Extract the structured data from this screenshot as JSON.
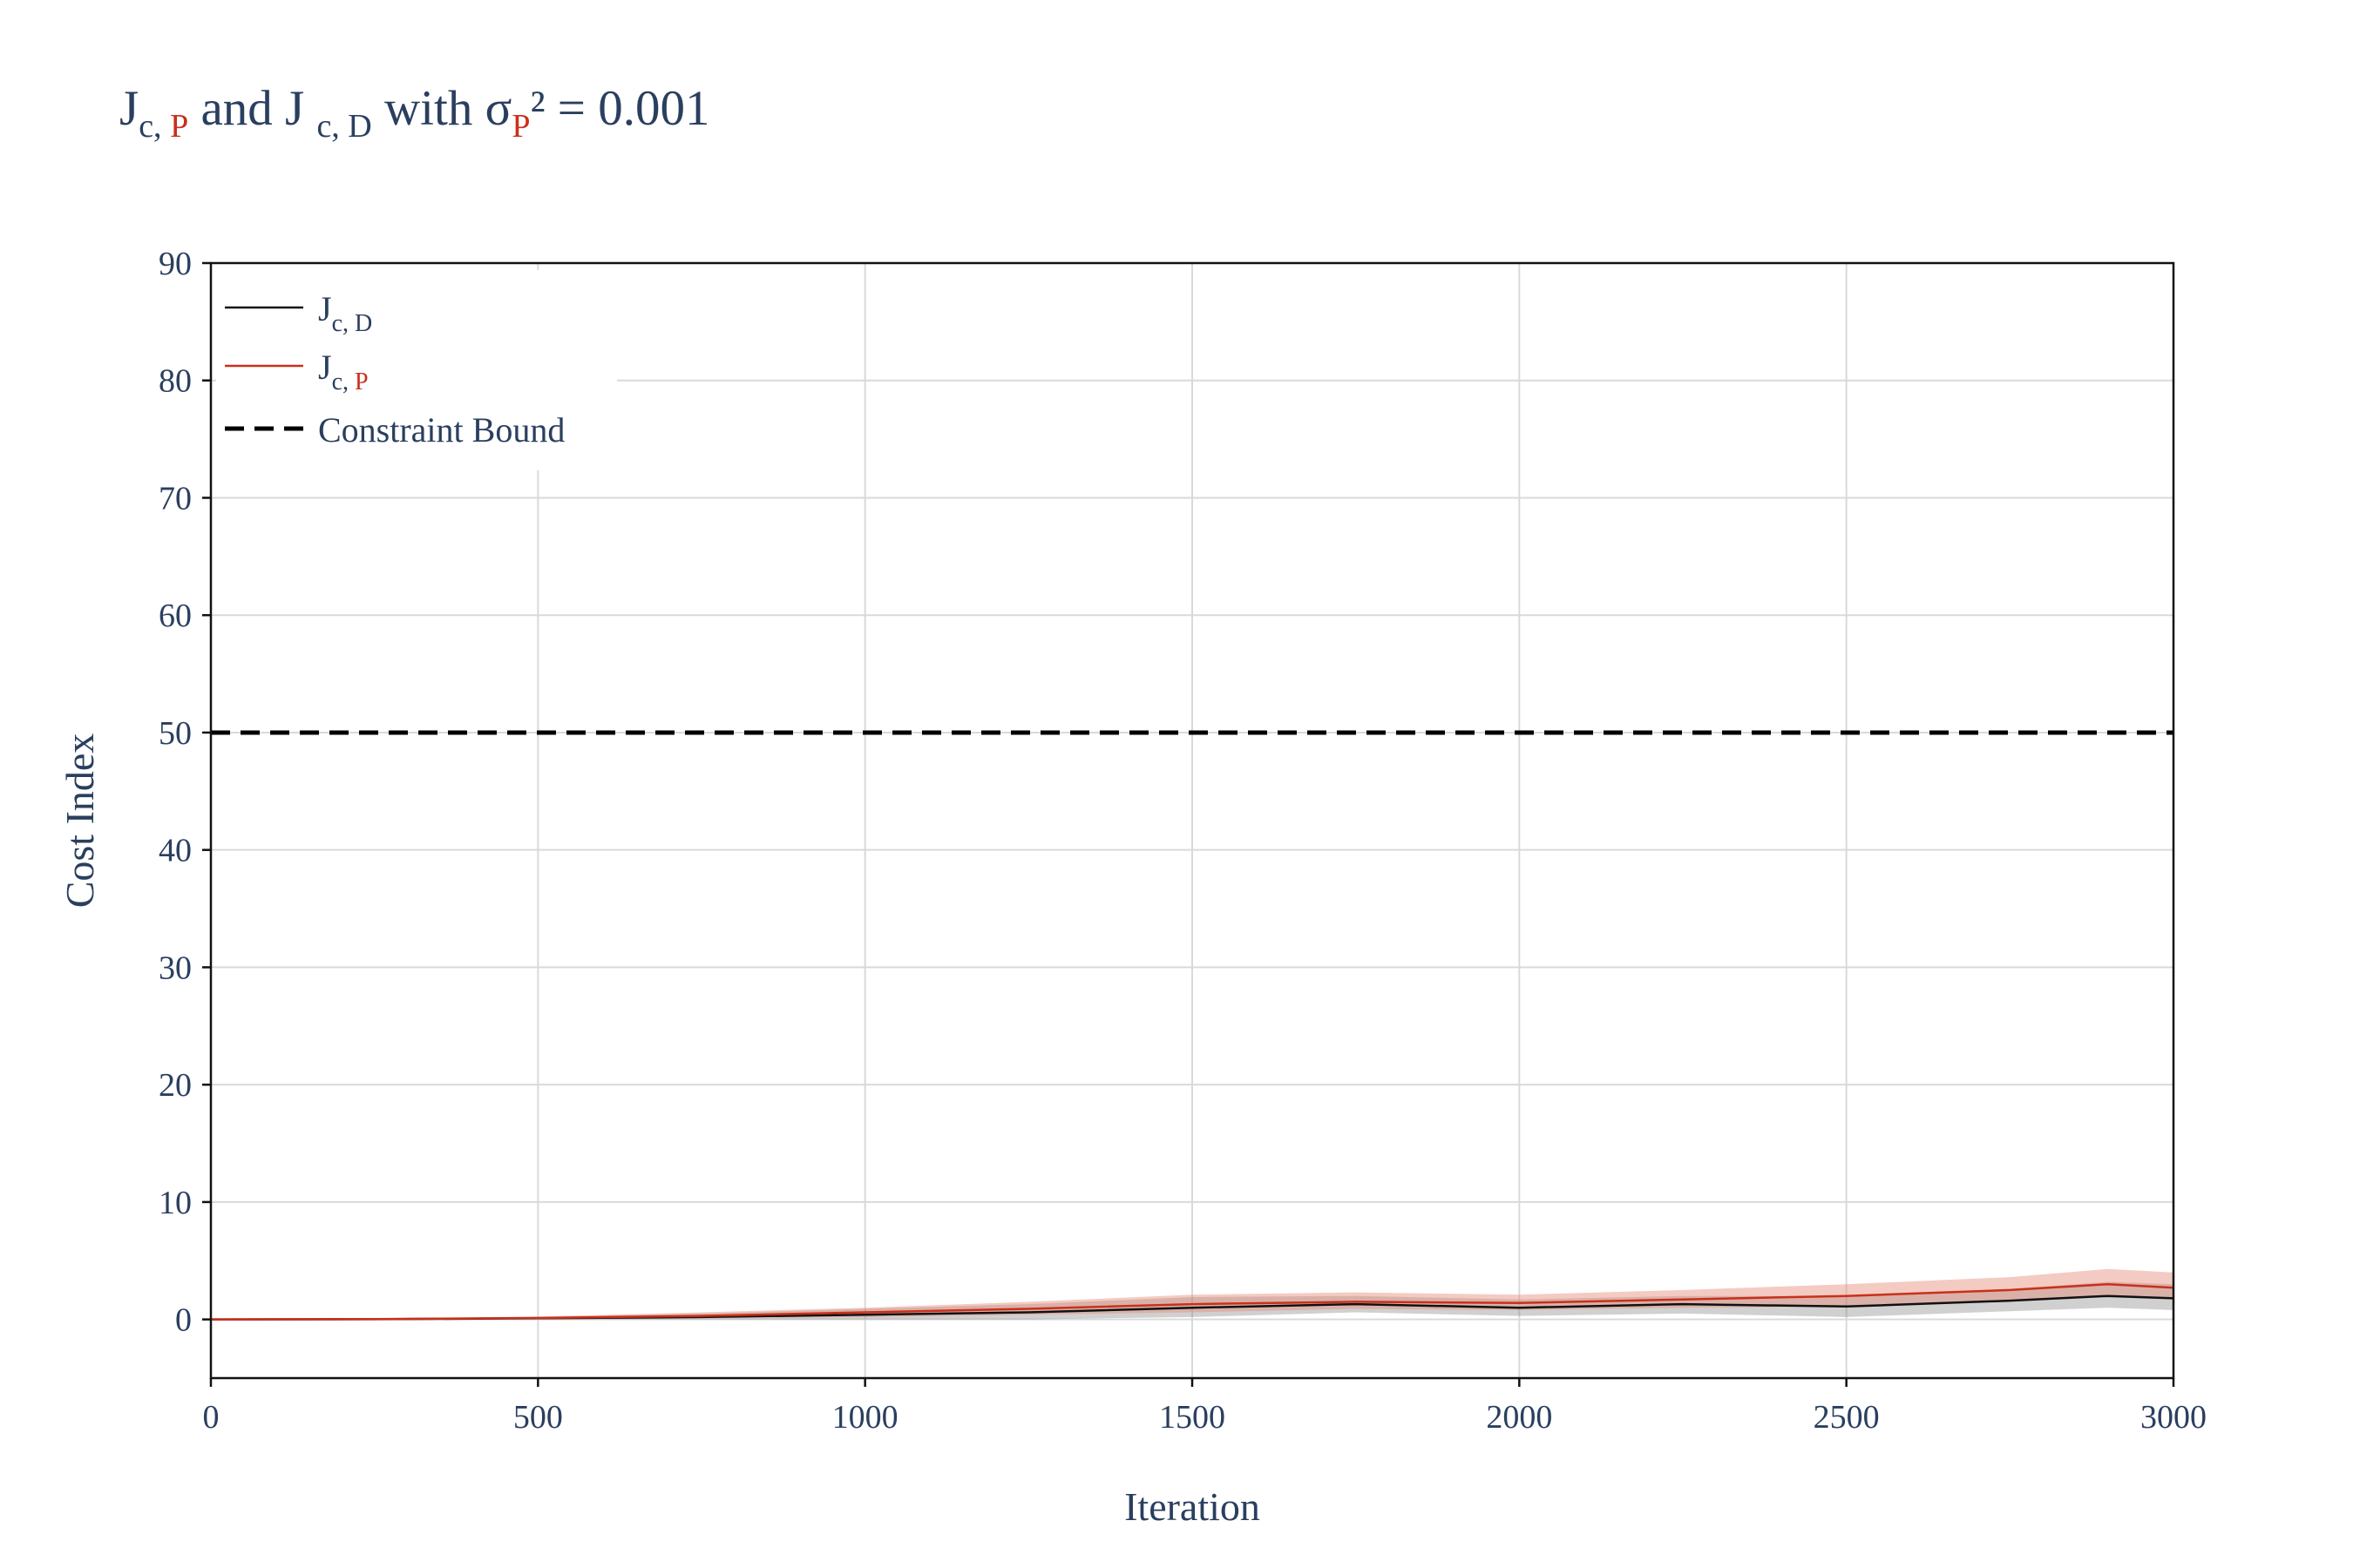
{
  "title": {
    "j": "J",
    "sub_c": "c, ",
    "sub_p": "P",
    "and": " and J ",
    "sub_cd": "c, D",
    "with": "  with σ",
    "sigma_sub": "P",
    "rest": "² = 0.001"
  },
  "colors": {
    "jcd": "#111111",
    "jcp": "#c9301b",
    "bound": "#000000",
    "grid": "#d9d9d9",
    "text": "#2a3f5f",
    "band_jcd": "rgba(120,120,120,0.35)",
    "band_jcp": "rgba(230,140,120,0.45)"
  },
  "chart_data": {
    "type": "line",
    "title": "J c, P and J c, D with σP² = 0.001",
    "xlabel": "Iteration",
    "ylabel": "Cost Index",
    "xlim": [
      0,
      3000
    ],
    "ylim": [
      -5,
      90
    ],
    "xticks": [
      0,
      500,
      1000,
      1500,
      2000,
      2500,
      3000
    ],
    "yticks": [
      0,
      10,
      20,
      30,
      40,
      50,
      60,
      70,
      80,
      90
    ],
    "grid": true,
    "legend_position": "top-left",
    "x": [
      0,
      250,
      500,
      750,
      1000,
      1250,
      1500,
      1750,
      2000,
      2250,
      2500,
      2750,
      2900,
      3000
    ],
    "series": [
      {
        "name": "J c, D",
        "legend_main": "J",
        "legend_sub": "c, D",
        "values": [
          0,
          0.02,
          0.1,
          0.2,
          0.4,
          0.6,
          1.0,
          1.3,
          1.0,
          1.3,
          1.1,
          1.6,
          2.0,
          1.8
        ],
        "band_lower": [
          0,
          0.0,
          0.0,
          0.0,
          0.0,
          0.0,
          0.2,
          0.6,
          0.3,
          0.5,
          0.2,
          0.7,
          1.0,
          0.8
        ],
        "band_upper": [
          0,
          0.05,
          0.2,
          0.5,
          0.9,
          1.3,
          1.9,
          2.0,
          1.7,
          2.0,
          2.0,
          2.6,
          3.2,
          3.0
        ]
      },
      {
        "name": "J c, P",
        "legend_main": "J",
        "legend_sub_c": "c, ",
        "legend_sub_p": "P",
        "values": [
          0,
          0.03,
          0.12,
          0.3,
          0.6,
          0.9,
          1.3,
          1.5,
          1.4,
          1.7,
          2.0,
          2.5,
          3.0,
          2.7
        ],
        "band_lower": [
          0,
          0.0,
          0.0,
          0.1,
          0.2,
          0.4,
          0.6,
          0.9,
          0.8,
          1.0,
          1.1,
          1.5,
          1.9,
          1.7
        ],
        "band_upper": [
          0,
          0.06,
          0.25,
          0.6,
          1.0,
          1.5,
          2.1,
          2.3,
          2.1,
          2.5,
          3.0,
          3.6,
          4.3,
          4.0
        ]
      },
      {
        "name": "Constraint Bound",
        "values": [
          50,
          50
        ],
        "x": [
          0,
          3000
        ],
        "style": "dashed"
      }
    ]
  }
}
